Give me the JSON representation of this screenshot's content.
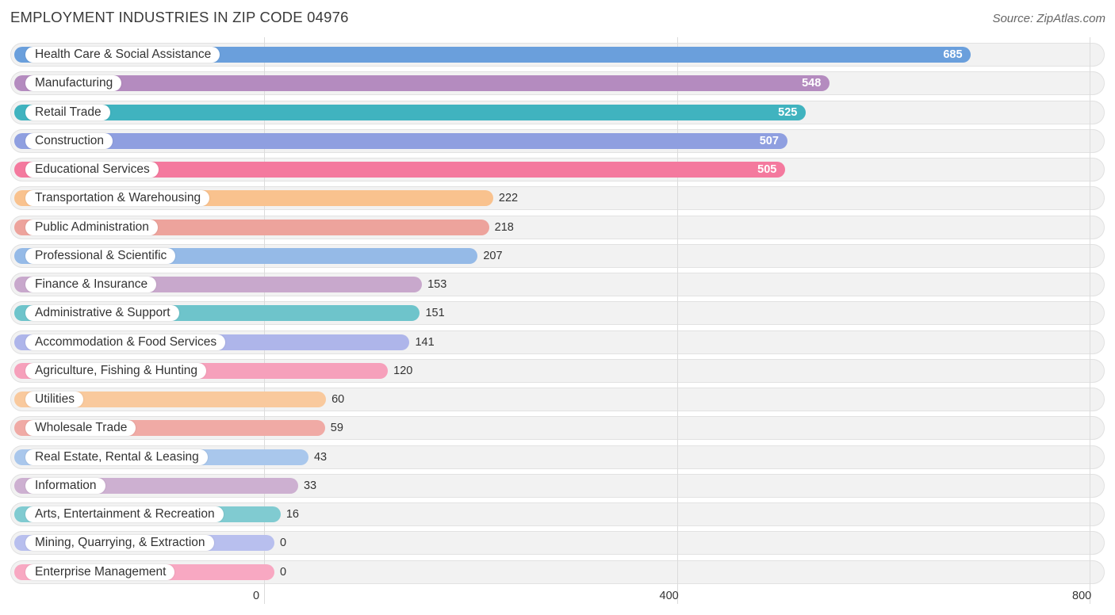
{
  "chart_data": {
    "type": "bar",
    "orientation": "horizontal",
    "title": "EMPLOYMENT INDUSTRIES IN ZIP CODE 04976",
    "source": "Source: ZipAtlas.com",
    "xlim": [
      0,
      800
    ],
    "xticks": [
      0,
      400,
      800
    ],
    "grid": true,
    "categories": [
      "Health Care & Social Assistance",
      "Manufacturing",
      "Retail Trade",
      "Construction",
      "Educational Services",
      "Transportation & Warehousing",
      "Public Administration",
      "Professional & Scientific",
      "Finance & Insurance",
      "Administrative & Support",
      "Accommodation & Food Services",
      "Agriculture, Fishing & Hunting",
      "Utilities",
      "Wholesale Trade",
      "Real Estate, Rental & Leasing",
      "Information",
      "Arts, Entertainment & Recreation",
      "Mining, Quarrying, & Extraction",
      "Enterprise Management"
    ],
    "values": [
      685,
      548,
      525,
      507,
      505,
      222,
      218,
      207,
      153,
      151,
      141,
      120,
      60,
      59,
      43,
      33,
      16,
      0,
      0
    ],
    "colors": [
      "#6a9fdc",
      "#b48bbf",
      "#40b3bf",
      "#8f9fe0",
      "#f4799e",
      "#f9c28e",
      "#eda39c",
      "#95bae7",
      "#c8a8cc",
      "#6ec4cb",
      "#aeb5ea",
      "#f6a0bb",
      "#f9c99d",
      "#f0aaa5",
      "#a9c7ec",
      "#cdb0d1",
      "#80cbd1",
      "#b8bfee",
      "#f8a8c2"
    ]
  }
}
